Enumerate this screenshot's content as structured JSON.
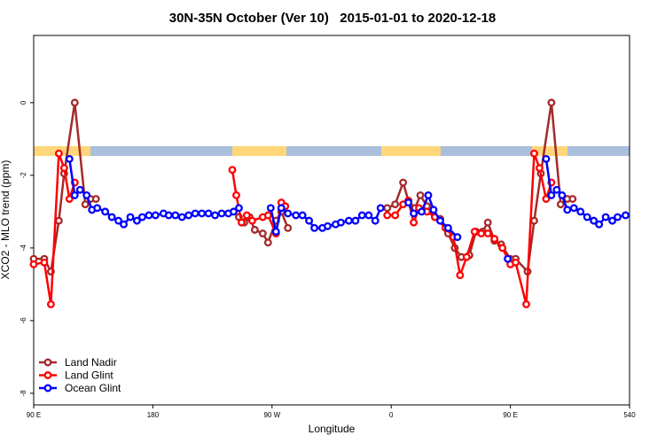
{
  "chart_data": {
    "type": "line",
    "title": "30N-35N October (Ver 10)   2015-01-01 to 2020-12-18",
    "xlabel": "Longitude",
    "ylabel": "XCO2 - MLO trend (ppm)",
    "xlim": [
      90,
      540
    ],
    "xticks": [
      {
        "value": 90,
        "label": "90 E"
      },
      180,
      {
        "value": 270,
        "label": "90 W"
      },
      {
        "value": 360,
        "label": "0"
      },
      {
        "value": 450,
        "label": "90 E"
      },
      540
    ],
    "ylim": [
      -8.32,
      1.85
    ],
    "yticks": [
      0,
      -2,
      -4,
      -6,
      -8
    ],
    "legend": "bottom-left",
    "series": [
      {
        "name": "Land Nadir",
        "color": "#a52a2a",
        "x": [
          90,
          98,
          103,
          109,
          113,
          121,
          129,
          133,
          137,
          null,
          245,
          249,
          253,
          257,
          263,
          267,
          273,
          277,
          282,
          null,
          357,
          363,
          369,
          373,
          378,
          382,
          387,
          393,
          397,
          403,
          408,
          413,
          419,
          424,
          429,
          433,
          438,
          443,
          450,
          454,
          463,
          468,
          473,
          481,
          488,
          493,
          497
        ],
        "values": [
          -4.3,
          -4.3,
          -4.65,
          -3.25,
          -1.95,
          0,
          -2.8,
          -2.65,
          -2.65,
          null,
          -3.15,
          -3.3,
          -3.15,
          -3.5,
          -3.6,
          -3.85,
          -3.25,
          -3.0,
          -3.45,
          null,
          -2.9,
          -2.8,
          -2.2,
          -2.7,
          -2.9,
          -2.55,
          -2.85,
          -3.15,
          -3.2,
          -3.6,
          -4.0,
          -4.25,
          -4.2,
          -3.55,
          -3.55,
          -3.3,
          -3.8,
          -3.9,
          -4.3,
          -4.3,
          -4.65,
          -3.25,
          -1.95,
          0,
          -2.8,
          -2.65,
          -2.65
        ]
      },
      {
        "name": "Land Glint",
        "color": "#ff0000",
        "x": [
          90,
          98,
          103,
          109,
          113,
          117,
          121,
          null,
          240,
          243,
          247,
          251,
          255,
          263,
          267,
          273,
          277,
          280,
          null,
          357,
          363,
          369,
          373,
          377,
          381,
          387,
          393,
          401,
          407,
          412,
          417,
          423,
          428,
          433,
          438,
          444,
          450,
          454,
          462,
          468,
          472,
          477,
          481
        ],
        "values": [
          -4.45,
          -4.4,
          -5.55,
          -1.4,
          -1.8,
          -2.65,
          -2.2,
          null,
          -1.85,
          -2.55,
          -3.3,
          -3.1,
          -3.25,
          -3.15,
          -3.1,
          -3.6,
          -2.75,
          -2.85,
          null,
          -3.1,
          -3.1,
          -2.8,
          -2.7,
          -3.3,
          -2.9,
          -3.0,
          -3.15,
          -3.45,
          -3.7,
          -4.75,
          -4.25,
          -3.55,
          -3.6,
          -3.6,
          -3.75,
          -4.0,
          -4.45,
          -4.4,
          -5.55,
          -1.4,
          -1.8,
          -2.65,
          -2.2
        ]
      },
      {
        "name": "Ocean Glint",
        "color": "#0000ff",
        "x": [
          117,
          121,
          125,
          130,
          134,
          138,
          144,
          149,
          154,
          158,
          163,
          168,
          172,
          177,
          182,
          188,
          192,
          197,
          202,
          207,
          212,
          217,
          222,
          227,
          232,
          237,
          241,
          245,
          null,
          269,
          273,
          277,
          282,
          288,
          293,
          298,
          302,
          308,
          312,
          318,
          322,
          328,
          333,
          338,
          343,
          348,
          352,
          null,
          373,
          377,
          383,
          388,
          392,
          397,
          403,
          410,
          null,
          448,
          null,
          477,
          481,
          485,
          489,
          493,
          498,
          503,
          508,
          513,
          517,
          522,
          527,
          531,
          537
        ],
        "values": [
          -1.55,
          -2.55,
          -2.4,
          -2.55,
          -2.95,
          -2.9,
          -3.0,
          -3.15,
          -3.25,
          -3.35,
          -3.15,
          -3.25,
          -3.15,
          -3.1,
          -3.1,
          -3.05,
          -3.1,
          -3.1,
          -3.15,
          -3.1,
          -3.05,
          -3.05,
          -3.05,
          -3.1,
          -3.05,
          -3.05,
          -3.0,
          -2.9,
          null,
          -2.9,
          -3.55,
          -2.9,
          -3.05,
          -3.1,
          -3.1,
          -3.25,
          -3.45,
          -3.45,
          -3.4,
          -3.35,
          -3.3,
          -3.25,
          -3.25,
          -3.1,
          -3.1,
          -3.25,
          -2.9,
          null,
          -2.75,
          -3.05,
          -3.0,
          -2.55,
          -2.95,
          -3.25,
          -3.45,
          -3.7,
          null,
          -4.3,
          null,
          -1.55,
          -2.55,
          -2.4,
          -2.55,
          -2.95,
          -2.9,
          -3.0,
          -3.15,
          -3.25,
          -3.35,
          -3.15,
          -3.25,
          -3.15,
          -3.1
        ]
      }
    ]
  }
}
